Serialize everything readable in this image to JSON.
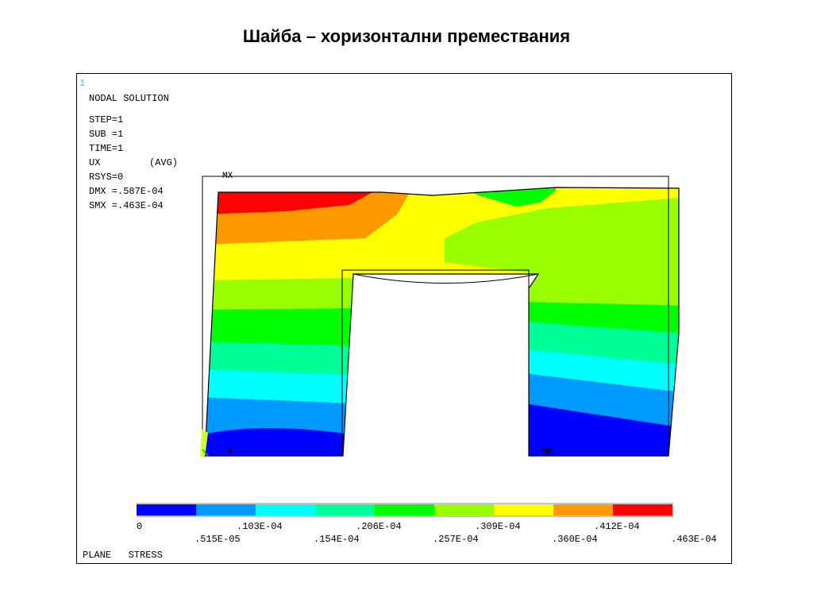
{
  "title": "Шайба – хоризонтални премествания",
  "window_number": "1",
  "info": {
    "heading": "NODAL SOLUTION",
    "step": "STEP=1",
    "sub": "SUB =1",
    "time": "TIME=1",
    "quantity": "UX",
    "avg": "(AVG)",
    "rsys": "RSYS=0",
    "dmx": "DMX =.587E-04",
    "smx": "SMX =.463E-04"
  },
  "markers": {
    "mx": "MX",
    "mn": "MN",
    "x": "X"
  },
  "legend": {
    "colors": [
      "#0000ff",
      "#0099ff",
      "#00ffff",
      "#00ff99",
      "#00ff00",
      "#99ff00",
      "#ffff00",
      "#ff9900",
      "#ff0000"
    ],
    "labels_top": [
      "0",
      ".103E-04",
      ".206E-04",
      ".309E-04",
      ".412E-04"
    ],
    "labels_bottom": [
      ".515E-05",
      ".154E-04",
      ".257E-04",
      ".360E-04",
      ".463E-04"
    ]
  },
  "footer": "PLANE   STRESS"
}
